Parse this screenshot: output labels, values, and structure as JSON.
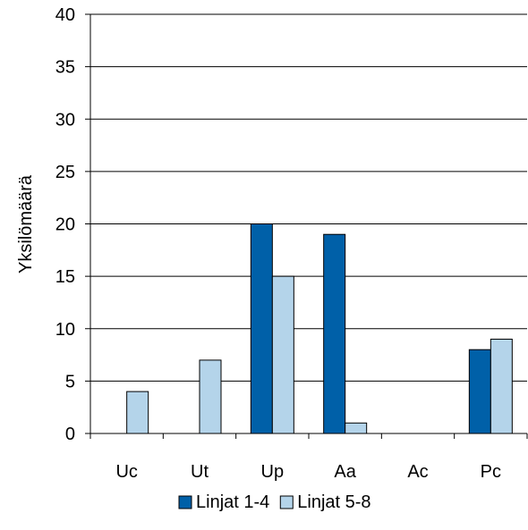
{
  "chart_data": {
    "type": "bar",
    "ylabel": "Yksilömäärä",
    "xlabel": "",
    "title": "",
    "categories": [
      "Uc",
      "Ut",
      "Up",
      "Aa",
      "Ac",
      "Pc"
    ],
    "series": [
      {
        "name": "Linjat 1-4",
        "color": "#0060a8",
        "values": [
          0,
          0,
          20,
          19,
          0,
          8
        ]
      },
      {
        "name": "Linjat 5-8",
        "color": "#b4d4ea",
        "values": [
          4,
          7,
          15,
          1,
          0,
          9
        ]
      }
    ],
    "ylim": [
      0,
      40
    ],
    "yticks": [
      0,
      5,
      10,
      15,
      20,
      25,
      30,
      35,
      40
    ],
    "grid": true,
    "legend_position": "bottom"
  }
}
